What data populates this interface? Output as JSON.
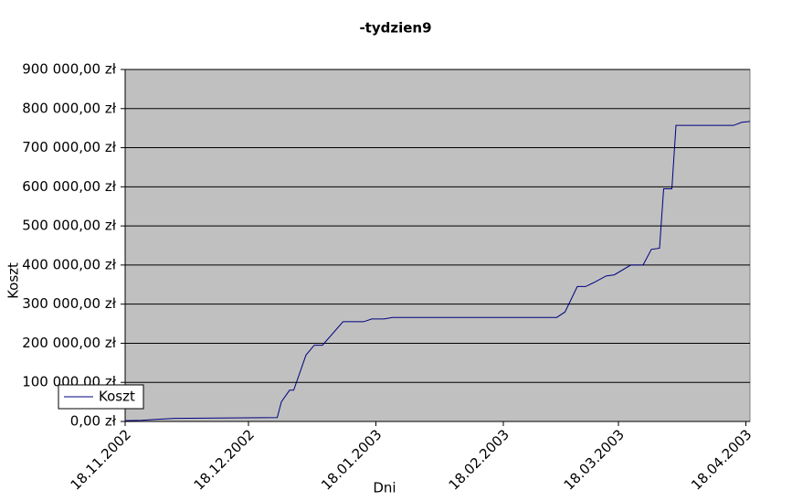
{
  "chart_data": {
    "type": "line",
    "title": "-tydzien9",
    "x_label": "Dni",
    "y_label": "Koszt",
    "x": [
      "2002-11-18",
      "2002-11-22",
      "2002-11-25",
      "2002-11-30",
      "2002-12-25",
      "2002-12-26",
      "2002-12-28",
      "2002-12-29",
      "2003-01-01",
      "2003-01-03",
      "2003-01-05",
      "2003-01-10",
      "2003-01-15",
      "2003-01-17",
      "2003-01-20",
      "2003-01-22",
      "2003-03-03",
      "2003-03-05",
      "2003-03-08",
      "2003-03-10",
      "2003-03-12",
      "2003-03-15",
      "2003-03-17",
      "2003-03-21",
      "2003-03-24",
      "2003-03-26",
      "2003-03-28",
      "2003-03-29",
      "2003-03-31",
      "2003-04-01",
      "2003-04-15",
      "2003-04-17",
      "2003-04-19"
    ],
    "series": [
      {
        "name": "Koszt",
        "color": "#000080",
        "values": [
          2000,
          3000,
          5000,
          8000,
          10000,
          50000,
          80000,
          80000,
          170000,
          195000,
          195000,
          255000,
          255000,
          262000,
          262000,
          266000,
          266000,
          280000,
          345000,
          345000,
          355000,
          372000,
          375000,
          400000,
          400000,
          440000,
          443000,
          595000,
          595000,
          757000,
          757000,
          765000,
          767000
        ]
      }
    ],
    "xlim": [
      "2002-11-18",
      "2003-04-19"
    ],
    "xticks": [
      {
        "value": "2002-11-18",
        "label": "18.11.2002"
      },
      {
        "value": "2002-12-18",
        "label": "18.12.2002"
      },
      {
        "value": "2003-01-18",
        "label": "18.01.2003"
      },
      {
        "value": "2003-02-18",
        "label": "18.02.2003"
      },
      {
        "value": "2003-03-18",
        "label": "18.03.2003"
      },
      {
        "value": "2003-04-18",
        "label": "18.04.2003"
      }
    ],
    "ylim": [
      0,
      900000
    ],
    "yticks": [
      {
        "value": 0,
        "label": "0,00 zł"
      },
      {
        "value": 100000,
        "label": "100 000,00 zł"
      },
      {
        "value": 200000,
        "label": "200 000,00 zł"
      },
      {
        "value": 300000,
        "label": "300 000,00 zł"
      },
      {
        "value": 400000,
        "label": "400 000,00 zł"
      },
      {
        "value": 500000,
        "label": "500 000,00 zł"
      },
      {
        "value": 600000,
        "label": "600 000,00 zł"
      },
      {
        "value": 700000,
        "label": "700 000,00 zł"
      },
      {
        "value": 800000,
        "label": "800 000,00 zł"
      },
      {
        "value": 900000,
        "label": "900 000,00 zł"
      }
    ],
    "grid": true,
    "plot_background": "#c0c0c0",
    "legend": "bottom-left"
  }
}
